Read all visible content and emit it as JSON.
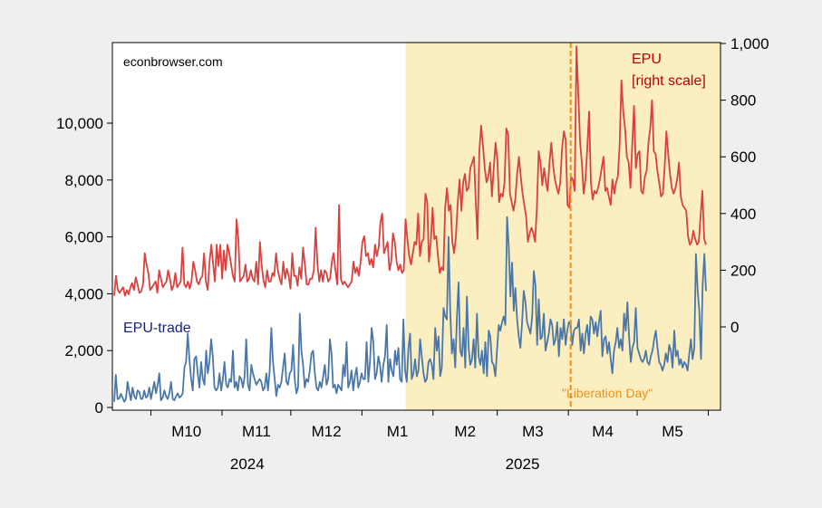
{
  "chart_data": {
    "type": "line",
    "watermark": "econbrowser.com",
    "x_month_labels": [
      "M10",
      "M11",
      "M12",
      "M1",
      "M2",
      "M3",
      "M4",
      "M5"
    ],
    "x_year_labels": [
      "2024",
      "2025"
    ],
    "y_left": {
      "ticks": [
        "0",
        "2,000",
        "4,000",
        "6,000",
        "8,000",
        "10,000"
      ],
      "range": [
        0,
        12300
      ]
    },
    "y_right": {
      "ticks": [
        "0",
        "200",
        "400",
        "600",
        "800",
        "1,000"
      ],
      "range": [
        -280,
        1000
      ]
    },
    "shaded_region": {
      "start": "2025-01-20",
      "end": "2025-05-31",
      "color": "#fbefc2"
    },
    "event_marker": {
      "date": "2025-04-02",
      "label": "\"Liberation Day\"",
      "color": "#e8901c"
    },
    "date_range": [
      "2024-09-15",
      "2025-05-31"
    ],
    "series": [
      {
        "name": "EPU",
        "label_line1": "EPU",
        "label_line2": "[right scale]",
        "axis": "right",
        "color": "#d9413f",
        "label_color": "#c00000",
        "values": [
          110,
          180,
          130,
          120,
          130,
          140,
          110,
          130,
          115,
          140,
          155,
          130,
          175,
          150,
          120,
          125,
          150,
          260,
          220,
          190,
          130,
          140,
          150,
          160,
          120,
          200,
          170,
          140,
          150,
          160,
          200,
          170,
          130,
          145,
          190,
          140,
          150,
          160,
          280,
          150,
          140,
          160,
          135,
          160,
          230,
          200,
          160,
          150,
          170,
          180,
          260,
          160,
          130,
          230,
          290,
          220,
          160,
          290,
          215,
          290,
          170,
          270,
          200,
          290,
          260,
          220,
          180,
          160,
          380,
          310,
          160,
          170,
          180,
          220,
          160,
          170,
          200,
          170,
          160,
          230,
          150,
          300,
          215,
          165,
          140,
          200,
          160,
          160,
          190,
          180,
          260,
          200,
          170,
          150,
          230,
          170,
          205,
          180,
          135,
          260,
          180,
          180,
          145,
          210,
          170,
          280,
          220,
          150,
          150,
          170,
          170,
          200,
          350,
          220,
          160,
          200,
          160,
          200,
          190,
          160,
          170,
          230,
          260,
          200,
          150,
          430,
          170,
          150,
          160,
          150,
          140,
          150,
          160,
          230,
          190,
          210,
          180,
          230,
          300,
          320,
          250,
          260,
          220,
          240,
          210,
          290,
          250,
          280,
          370,
          400,
          260,
          280,
          300,
          200,
          230,
          330,
          300,
          230,
          200,
          220,
          190,
          200,
          380,
          310,
          250,
          220,
          260,
          300,
          290,
          400,
          250,
          300,
          310,
          470,
          440,
          230,
          300,
          420,
          310,
          320,
          250,
          190,
          210,
          200,
          420,
          490,
          410,
          430,
          300,
          260,
          320,
          440,
          520,
          410,
          510,
          540,
          480,
          490,
          560,
          580,
          600,
          450,
          310,
          620,
          710,
          640,
          560,
          510,
          530,
          580,
          460,
          560,
          650,
          590,
          440,
          470,
          460,
          510,
          700,
          680,
          470,
          440,
          410,
          450,
          540,
          600,
          530,
          470,
          430,
          390,
          300,
          330,
          350,
          330,
          300,
          420,
          620,
          580,
          500,
          560,
          510,
          480,
          580,
          650,
          570,
          520,
          490,
          470,
          510,
          630,
          690,
          660,
          430,
          420,
          530,
          520,
          480,
          990,
          820,
          650,
          580,
          470,
          520,
          630,
          760,
          510,
          450,
          480,
          470,
          490,
          520,
          560,
          600,
          480,
          490,
          460,
          430,
          520,
          470,
          510,
          530,
          640,
          870,
          760,
          700,
          600,
          580,
          490,
          640,
          780,
          560,
          610,
          620,
          480,
          470,
          530,
          550,
          650,
          700,
          800,
          620,
          610,
          550,
          510,
          460,
          470,
          560,
          690,
          610,
          540,
          490,
          470,
          490,
          520,
          580,
          460,
          430,
          420,
          410,
          320,
          290,
          300,
          340,
          310,
          290,
          300,
          390,
          480,
          310,
          290
        ]
      },
      {
        "name": "EPU-trade",
        "axis": "left",
        "color": "#4a77a8",
        "label_color": "#1a237e",
        "values": [
          200,
          1150,
          300,
          320,
          480,
          350,
          200,
          300,
          900,
          550,
          250,
          700,
          400,
          300,
          600,
          550,
          300,
          320,
          600,
          350,
          400,
          700,
          300,
          600,
          900,
          500,
          800,
          1200,
          250,
          350,
          600,
          400,
          300,
          500,
          900,
          300,
          250,
          400,
          500,
          350,
          400,
          500,
          1400,
          1600,
          2600,
          1700,
          1000,
          600,
          1700,
          1800,
          1200,
          700,
          1600,
          1000,
          800,
          2000,
          1200,
          1600,
          2400,
          1800,
          700,
          600,
          700,
          1200,
          600,
          1000,
          1600,
          800,
          700,
          1000,
          900,
          2000,
          700,
          900,
          600,
          1100,
          1000,
          700,
          1100,
          2400,
          800,
          600,
          1500,
          1200,
          1000,
          800,
          900,
          1000,
          900,
          600,
          700,
          1200,
          600,
          1300,
          2800,
          1600,
          1000,
          400,
          800,
          700,
          900,
          1400,
          1900,
          900,
          800,
          1200,
          1300,
          2200,
          1000,
          500,
          700,
          3300,
          2000,
          1500,
          700,
          1000,
          900,
          1300,
          1900,
          2000,
          1200,
          700,
          600,
          900,
          700,
          1100,
          1500,
          800,
          1000,
          2400,
          1900,
          700,
          800,
          500,
          800,
          700,
          600,
          1500,
          1100,
          2300,
          700,
          900,
          1300,
          600,
          1100,
          1400,
          700,
          900,
          1200,
          1000,
          1000,
          2300,
          900,
          1600,
          2800,
          2300,
          1000,
          1200,
          1800,
          1500,
          900,
          1500,
          1800,
          2900,
          900,
          1700,
          1300,
          1100,
          2000,
          1500,
          2100,
          1000,
          900,
          3100,
          1300,
          900,
          2100,
          2600,
          1000,
          1200,
          1700,
          1100,
          1300,
          2400,
          1800,
          1200,
          900,
          1000,
          1600,
          1700,
          1500,
          1000,
          2800,
          2000,
          2500,
          1100,
          1400,
          3500,
          3200,
          3100,
          6000,
          3400,
          1900,
          2400,
          1400,
          3100,
          4400,
          2000,
          1800,
          2800,
          1400,
          3900,
          2100,
          1500,
          1700,
          2400,
          1400,
          3300,
          1800,
          1500,
          2000,
          1200,
          2300,
          1100,
          2700,
          2500,
          1600,
          1500,
          1100,
          2000,
          2900,
          2700,
          3000,
          3200,
          2900,
          6700,
          5700,
          3900,
          5100,
          3400,
          4200,
          3100,
          2500,
          2100,
          3000,
          4100,
          3700,
          3000,
          2800,
          2600,
          3200,
          4800,
          4300,
          2200,
          3800,
          2400,
          2500,
          3300,
          2000,
          2300,
          2600,
          3100,
          2900,
          2200,
          2400,
          3000,
          1800,
          2800,
          2400,
          3100,
          2200,
          2700,
          3000,
          2900,
          2200,
          2700,
          2800,
          2800,
          3100,
          2000,
          2600,
          1900,
          2600,
          2900,
          2200,
          3200,
          3100,
          2600,
          3000,
          2500,
          3000,
          3400,
          1800,
          2400,
          2500,
          1900,
          2300,
          1700,
          1200,
          2000,
          2300,
          2800,
          2100,
          2400,
          2000,
          3300,
          2700,
          3700,
          2500,
          1600,
          2100,
          2300,
          3500,
          2100,
          1900,
          1700,
          1600,
          1700,
          2000,
          1600,
          1500,
          1800,
          2000,
          2400,
          2700,
          2100,
          1600,
          1500,
          1300,
          1500,
          1900,
          1600,
          2200,
          2000,
          1400,
          2700,
          1800,
          2000,
          1500,
          1700,
          1400,
          1600,
          1500,
          1300,
          1900,
          2400,
          1700,
          2100,
          5400,
          4100,
          3400,
          1700,
          4300,
          5400,
          4100
        ]
      }
    ]
  }
}
